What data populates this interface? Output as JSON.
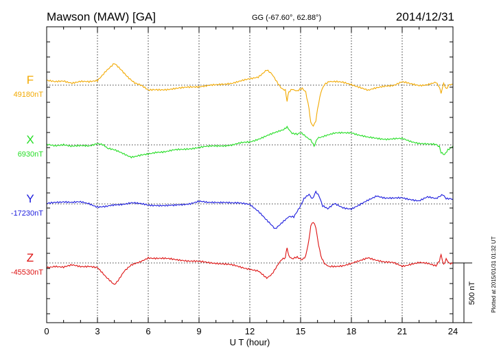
{
  "header": {
    "station": "Mawson (MAW)  [GA]",
    "coords": "GG (-67.60°,  62.88°)",
    "date": "2014/12/31"
  },
  "footer_note": "Plotted at 2015/01/31 01:32 UT",
  "scale_bar_label": "500 nT",
  "chart_data": {
    "type": "line",
    "title": "Mawson (MAW)  [GA]",
    "xlabel": "U T (hour)",
    "ylabel": "",
    "xlim": [
      0,
      24
    ],
    "x_ticks": [
      0,
      3,
      6,
      9,
      12,
      15,
      18,
      21,
      24
    ],
    "x_tick_labels": [
      "0",
      "3",
      "6",
      "9",
      "12",
      "15",
      "18",
      "21",
      "24"
    ],
    "grid": true,
    "scale_bar_nT": 500,
    "series": [
      {
        "name": "F",
        "baseline_label": "49180nT",
        "baseline_nT": 49180,
        "color": "#F2A900",
        "x": [
          0,
          0.5,
          1,
          1.5,
          2,
          2.5,
          3,
          3.5,
          4,
          4.4,
          4.8,
          5.2,
          5.6,
          6,
          6.5,
          7,
          7.5,
          8,
          8.5,
          9,
          9.5,
          10,
          10.5,
          11,
          11.5,
          12,
          12.5,
          13,
          13.3,
          13.6,
          13.9,
          14.1,
          14.2,
          14.3,
          14.5,
          14.8,
          15.1,
          15.3,
          15.5,
          15.6,
          15.75,
          15.9,
          16.0,
          16.2,
          16.4,
          16.7,
          17,
          17.5,
          18,
          18.5,
          19,
          19.5,
          20,
          20.5,
          21,
          21.5,
          22,
          22.5,
          23,
          23.2,
          23.3,
          23.45,
          23.6,
          23.8,
          24
        ],
        "y": [
          40,
          25,
          35,
          20,
          30,
          25,
          40,
          120,
          180,
          130,
          70,
          20,
          -5,
          -45,
          -40,
          -35,
          -30,
          -25,
          -15,
          -10,
          -5,
          0,
          10,
          20,
          35,
          50,
          70,
          130,
          90,
          30,
          -30,
          -40,
          -135,
          -55,
          -30,
          -50,
          -30,
          -60,
          -200,
          -310,
          -340,
          -300,
          -200,
          -60,
          0,
          35,
          30,
          20,
          5,
          -15,
          -45,
          -25,
          -5,
          0,
          25,
          10,
          0,
          5,
          20,
          -20,
          -65,
          20,
          -30,
          10,
          5
        ]
      },
      {
        "name": "X",
        "baseline_label": "6930nT",
        "baseline_nT": 6930,
        "color": "#22DD22",
        "x": [
          0,
          0.5,
          1,
          1.5,
          2,
          2.5,
          3,
          3.3,
          3.6,
          4,
          4.5,
          5,
          5.5,
          6,
          6.5,
          7,
          7.5,
          8,
          9,
          10,
          11,
          11.5,
          12,
          12.5,
          13,
          13.5,
          14,
          14.2,
          14.5,
          14.8,
          15,
          15.3,
          15.6,
          15.8,
          16,
          16.5,
          17,
          17.5,
          18,
          18.5,
          19,
          20,
          21,
          21.5,
          22,
          22.5,
          23,
          23.2,
          23.3,
          23.5,
          23.7,
          24
        ],
        "y": [
          0,
          -10,
          5,
          -10,
          -10,
          -10,
          15,
          0,
          -30,
          -45,
          -70,
          -100,
          -90,
          -80,
          -60,
          -55,
          -45,
          -40,
          -20,
          -10,
          0,
          15,
          25,
          50,
          75,
          100,
          130,
          150,
          100,
          85,
          100,
          70,
          45,
          -5,
          60,
          80,
          95,
          100,
          105,
          80,
          60,
          50,
          50,
          30,
          15,
          5,
          0,
          -20,
          -60,
          -80,
          -40,
          -10
        ]
      },
      {
        "name": "Y",
        "baseline_label": "-17230nT",
        "baseline_nT": -17230,
        "color": "#1A1ADD",
        "x": [
          0,
          0.5,
          1,
          1.5,
          2,
          2.5,
          3,
          3.5,
          4,
          4.5,
          5,
          5.5,
          6,
          6.5,
          7,
          7.5,
          8,
          8.5,
          9,
          9.5,
          10,
          10.5,
          11,
          11.5,
          12,
          12.5,
          13,
          13.5,
          14,
          14.3,
          14.6,
          15,
          15.2,
          15.5,
          15.7,
          15.9,
          16.1,
          16.3,
          16.6,
          17,
          17.5,
          18,
          18.5,
          19,
          19.5,
          20,
          20.5,
          21,
          21.5,
          22,
          22.5,
          23,
          23.4,
          23.6,
          24
        ],
        "y": [
          0,
          15,
          20,
          10,
          15,
          5,
          -25,
          -25,
          -10,
          0,
          10,
          0,
          -10,
          -10,
          -15,
          -15,
          -5,
          5,
          20,
          10,
          15,
          15,
          5,
          5,
          0,
          -60,
          -140,
          -210,
          -140,
          -110,
          -110,
          -20,
          40,
          80,
          40,
          100,
          60,
          -20,
          -40,
          0,
          -30,
          -40,
          -10,
          30,
          70,
          50,
          45,
          50,
          40,
          25,
          55,
          45,
          75,
          40,
          40
        ]
      },
      {
        "name": "Z",
        "baseline_label": "-45530nT",
        "baseline_nT": -45530,
        "color": "#DD1111",
        "x": [
          0,
          0.5,
          1,
          1.5,
          2,
          2.5,
          3,
          3.5,
          4,
          4.3,
          4.6,
          5,
          5.5,
          6,
          6.5,
          7,
          7.5,
          8,
          8.5,
          9,
          9.5,
          10,
          10.5,
          11,
          11.5,
          12,
          12.5,
          13,
          13.3,
          13.6,
          13.9,
          14.1,
          14.2,
          14.3,
          14.5,
          14.8,
          15.1,
          15.3,
          15.5,
          15.6,
          15.75,
          15.9,
          16.0,
          16.2,
          16.4,
          16.7,
          17,
          17.5,
          18,
          18.5,
          19,
          19.5,
          20,
          20.5,
          21,
          21.5,
          22,
          22.5,
          23,
          23.2,
          23.3,
          23.45,
          23.6,
          23.8,
          24
        ],
        "y": [
          -40,
          -25,
          -35,
          -20,
          -30,
          -25,
          -40,
          -120,
          -180,
          -130,
          -70,
          -20,
          5,
          45,
          40,
          35,
          30,
          25,
          15,
          10,
          5,
          0,
          -10,
          -20,
          -35,
          -50,
          -70,
          -130,
          -90,
          -30,
          30,
          40,
          135,
          55,
          30,
          50,
          30,
          60,
          200,
          310,
          340,
          300,
          200,
          60,
          0,
          -35,
          -30,
          -20,
          -5,
          15,
          45,
          25,
          5,
          0,
          -25,
          -10,
          0,
          -5,
          -20,
          20,
          65,
          -20,
          30,
          -10,
          -5
        ]
      }
    ]
  }
}
